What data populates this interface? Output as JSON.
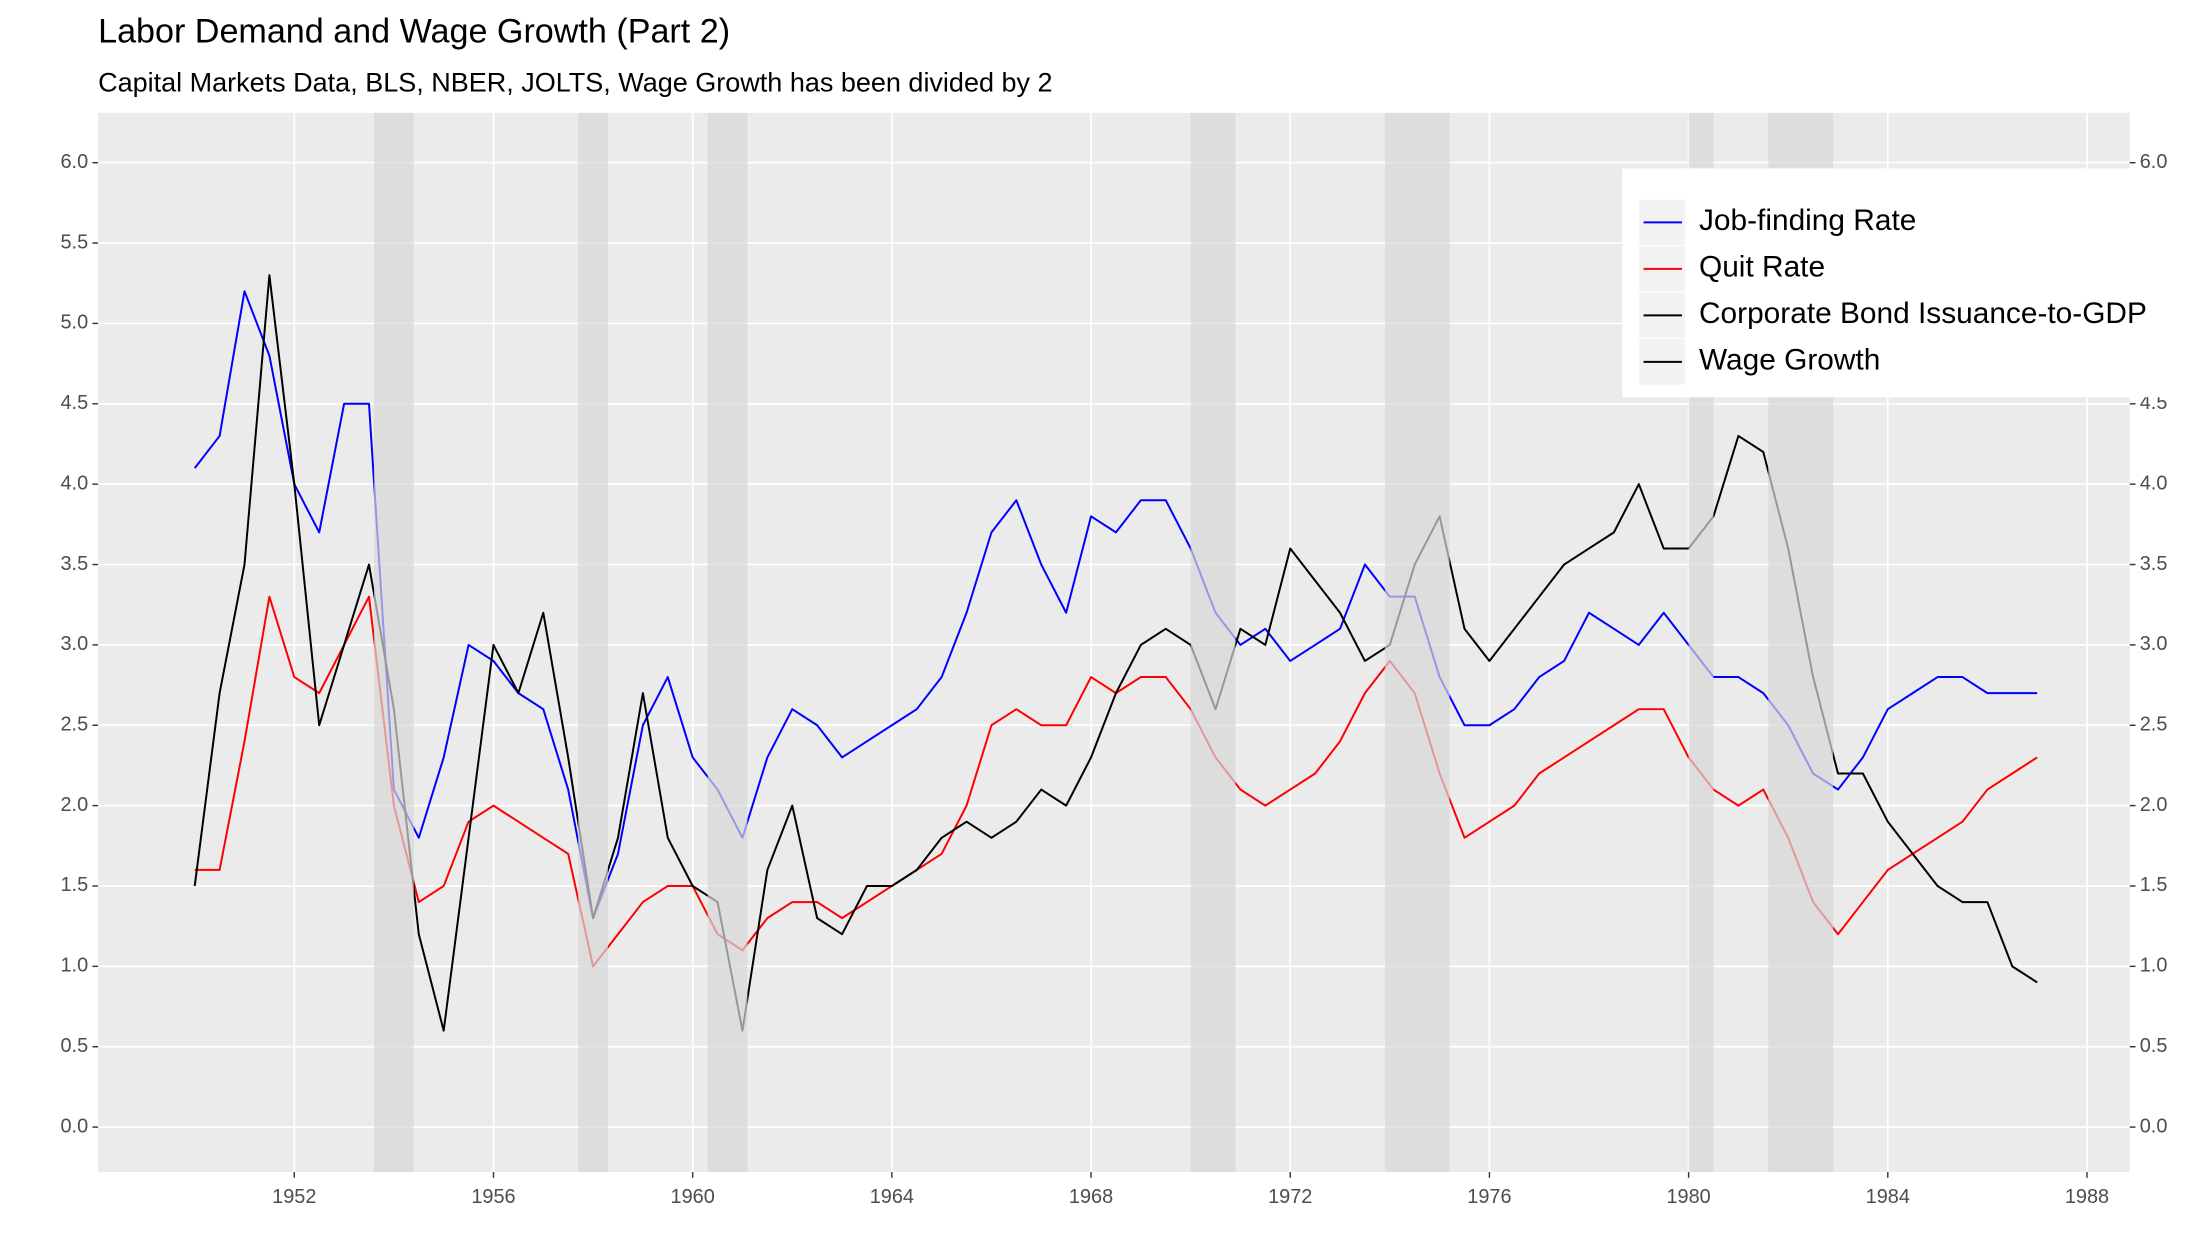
{
  "chart_data": {
    "type": "line",
    "title": "Labor Demand and Wage Growth (Part 2)",
    "subtitle": "Capital Markets Data, BLS, NBER, JOLTS, Wage Growth has been divided by 2",
    "x": [
      1950.0,
      1950.5,
      1951.0,
      1951.5,
      1952.0,
      1952.5,
      1953.0,
      1953.5,
      1954.0,
      1954.5,
      1955.0,
      1955.5,
      1956.0,
      1956.5,
      1957.0,
      1957.5,
      1958.0,
      1958.5,
      1959.0,
      1959.5,
      1960.0,
      1960.5,
      1961.0,
      1961.5,
      1962.0,
      1962.5,
      1963.0,
      1963.5,
      1964.0,
      1964.5,
      1965.0,
      1965.5,
      1966.0,
      1966.5,
      1967.0,
      1967.5,
      1968.0,
      1968.5,
      1969.0,
      1969.5,
      1970.0,
      1970.5,
      1971.0,
      1971.5,
      1972.0,
      1972.5,
      1973.0,
      1973.5,
      1974.0,
      1974.5,
      1975.0,
      1975.5,
      1976.0,
      1976.5,
      1977.0,
      1977.5,
      1978.0,
      1978.5,
      1979.0,
      1979.5,
      1980.0,
      1980.5,
      1981.0,
      1981.5,
      1982.0,
      1982.5,
      1983.0,
      1983.5,
      1984.0,
      1984.5,
      1985.0,
      1985.5,
      1986.0,
      1986.5,
      1987.0
    ],
    "series": [
      {
        "name": "Job-finding Rate",
        "color": "#0000ff",
        "values": [
          4.1,
          4.3,
          5.2,
          4.8,
          4.0,
          3.7,
          4.5,
          4.5,
          2.1,
          1.8,
          2.3,
          3.0,
          2.9,
          2.7,
          2.6,
          2.1,
          1.3,
          1.7,
          2.5,
          2.8,
          2.3,
          2.1,
          1.8,
          2.3,
          2.6,
          2.5,
          2.3,
          2.4,
          2.5,
          2.6,
          2.8,
          3.2,
          3.7,
          3.9,
          3.5,
          3.2,
          3.8,
          3.7,
          3.9,
          3.9,
          3.6,
          3.2,
          3.0,
          3.1,
          2.9,
          3.0,
          3.1,
          3.5,
          3.3,
          3.3,
          2.8,
          2.5,
          2.5,
          2.6,
          2.8,
          2.9,
          3.2,
          3.1,
          3.0,
          3.2,
          3.0,
          2.8,
          2.8,
          2.7,
          2.5,
          2.2,
          2.1,
          2.3,
          2.6,
          2.7,
          2.8,
          2.8,
          2.7,
          2.7,
          2.7
        ]
      },
      {
        "name": "Quit Rate",
        "color": "#ff0000",
        "values": [
          1.6,
          1.6,
          2.4,
          3.3,
          2.8,
          2.7,
          3.0,
          3.3,
          2.0,
          1.4,
          1.5,
          1.9,
          2.0,
          1.9,
          1.8,
          1.7,
          1.0,
          1.2,
          1.4,
          1.5,
          1.5,
          1.2,
          1.1,
          1.3,
          1.4,
          1.4,
          1.3,
          1.4,
          1.5,
          1.6,
          1.7,
          2.0,
          2.5,
          2.6,
          2.5,
          2.5,
          2.8,
          2.7,
          2.8,
          2.8,
          2.6,
          2.3,
          2.1,
          2.0,
          2.1,
          2.2,
          2.4,
          2.7,
          2.9,
          2.7,
          2.2,
          1.8,
          1.9,
          2.0,
          2.2,
          2.3,
          2.4,
          2.5,
          2.6,
          2.6,
          2.3,
          2.1,
          2.0,
          2.1,
          1.8,
          1.4,
          1.2,
          1.4,
          1.6,
          1.7,
          1.8,
          1.9,
          2.1,
          2.2,
          2.3
        ]
      },
      {
        "name": "Corporate Bond Issuance-to-GDP",
        "color": "#000000",
        "axis": "y2",
        "values": [
          null,
          null,
          null,
          null,
          null,
          null,
          null,
          null,
          null,
          null,
          null,
          null,
          null,
          null,
          null,
          null,
          null,
          null,
          null,
          null,
          null,
          null,
          null,
          null,
          null,
          null,
          null,
          null,
          null,
          null,
          null,
          null,
          null,
          null,
          null,
          null,
          null,
          null,
          null,
          null,
          null,
          null,
          null,
          null,
          null,
          null,
          null,
          null,
          null,
          null,
          null,
          null,
          null,
          null,
          null,
          null,
          null,
          null,
          null,
          null,
          null,
          null,
          null,
          null,
          null,
          null,
          null,
          null,
          null,
          null,
          null,
          null,
          null,
          null,
          null
        ]
      },
      {
        "name": "Wage Growth",
        "color": "#000000",
        "values": [
          1.5,
          2.7,
          3.5,
          5.3,
          4.0,
          2.5,
          3.0,
          3.5,
          2.6,
          1.2,
          0.6,
          1.8,
          3.0,
          2.7,
          3.2,
          2.3,
          1.3,
          1.8,
          2.7,
          1.8,
          1.5,
          1.4,
          0.6,
          1.6,
          2.0,
          1.3,
          1.2,
          1.5,
          1.5,
          1.6,
          1.8,
          1.9,
          1.8,
          1.9,
          2.1,
          2.0,
          2.3,
          2.7,
          3.0,
          3.1,
          3.0,
          2.6,
          3.1,
          3.0,
          3.6,
          3.4,
          3.2,
          2.9,
          3.0,
          3.5,
          3.8,
          3.1,
          2.9,
          3.1,
          3.3,
          3.5,
          3.6,
          3.7,
          4.0,
          3.6,
          3.6,
          3.8,
          4.3,
          4.2,
          3.6,
          2.8,
          2.2,
          2.2,
          1.9,
          1.7,
          1.5,
          1.4,
          1.4,
          1.0,
          0.9
        ]
      }
    ],
    "recessions": [
      [
        1953.6,
        1954.4
      ],
      [
        1957.7,
        1958.3
      ],
      [
        1960.3,
        1961.1
      ],
      [
        1970.0,
        1970.9
      ],
      [
        1973.9,
        1975.2
      ],
      [
        1980.0,
        1980.5
      ],
      [
        1981.6,
        1982.9
      ]
    ],
    "xlim": [
      1948.06,
      1988.86
    ],
    "xticks": [
      1952,
      1956,
      1960,
      1964,
      1968,
      1972,
      1976,
      1980,
      1984,
      1988
    ],
    "ylim": [
      -0.28,
      6.31
    ],
    "yticks": [
      {
        "value": 0,
        "label": "0.0"
      },
      0.5,
      {
        "value": 1,
        "label": "1.0"
      },
      1.5,
      {
        "value": 2,
        "label": "2.0"
      },
      2.5,
      {
        "value": 3,
        "label": "3.0"
      },
      3.5,
      {
        "value": 4,
        "label": "4.0"
      },
      4.5,
      {
        "value": 5,
        "label": "5.0"
      },
      5.5,
      {
        "value": 6,
        "label": "6.0"
      }
    ],
    "y2lim": [
      -0.28,
      6.31
    ],
    "y2ticks": [
      {
        "value": 0,
        "label": "0.0"
      },
      0.5,
      {
        "value": 1,
        "label": "1.0"
      },
      1.5,
      {
        "value": 2,
        "label": "2.0"
      },
      2.5,
      {
        "value": 3,
        "label": "3.0"
      },
      3.5,
      {
        "value": 4,
        "label": "4.0"
      },
      4.5,
      {
        "value": 5,
        "label": "5.0"
      },
      5.5,
      {
        "value": 6,
        "label": "6.0"
      }
    ],
    "grid": true,
    "legend": "top-right"
  }
}
